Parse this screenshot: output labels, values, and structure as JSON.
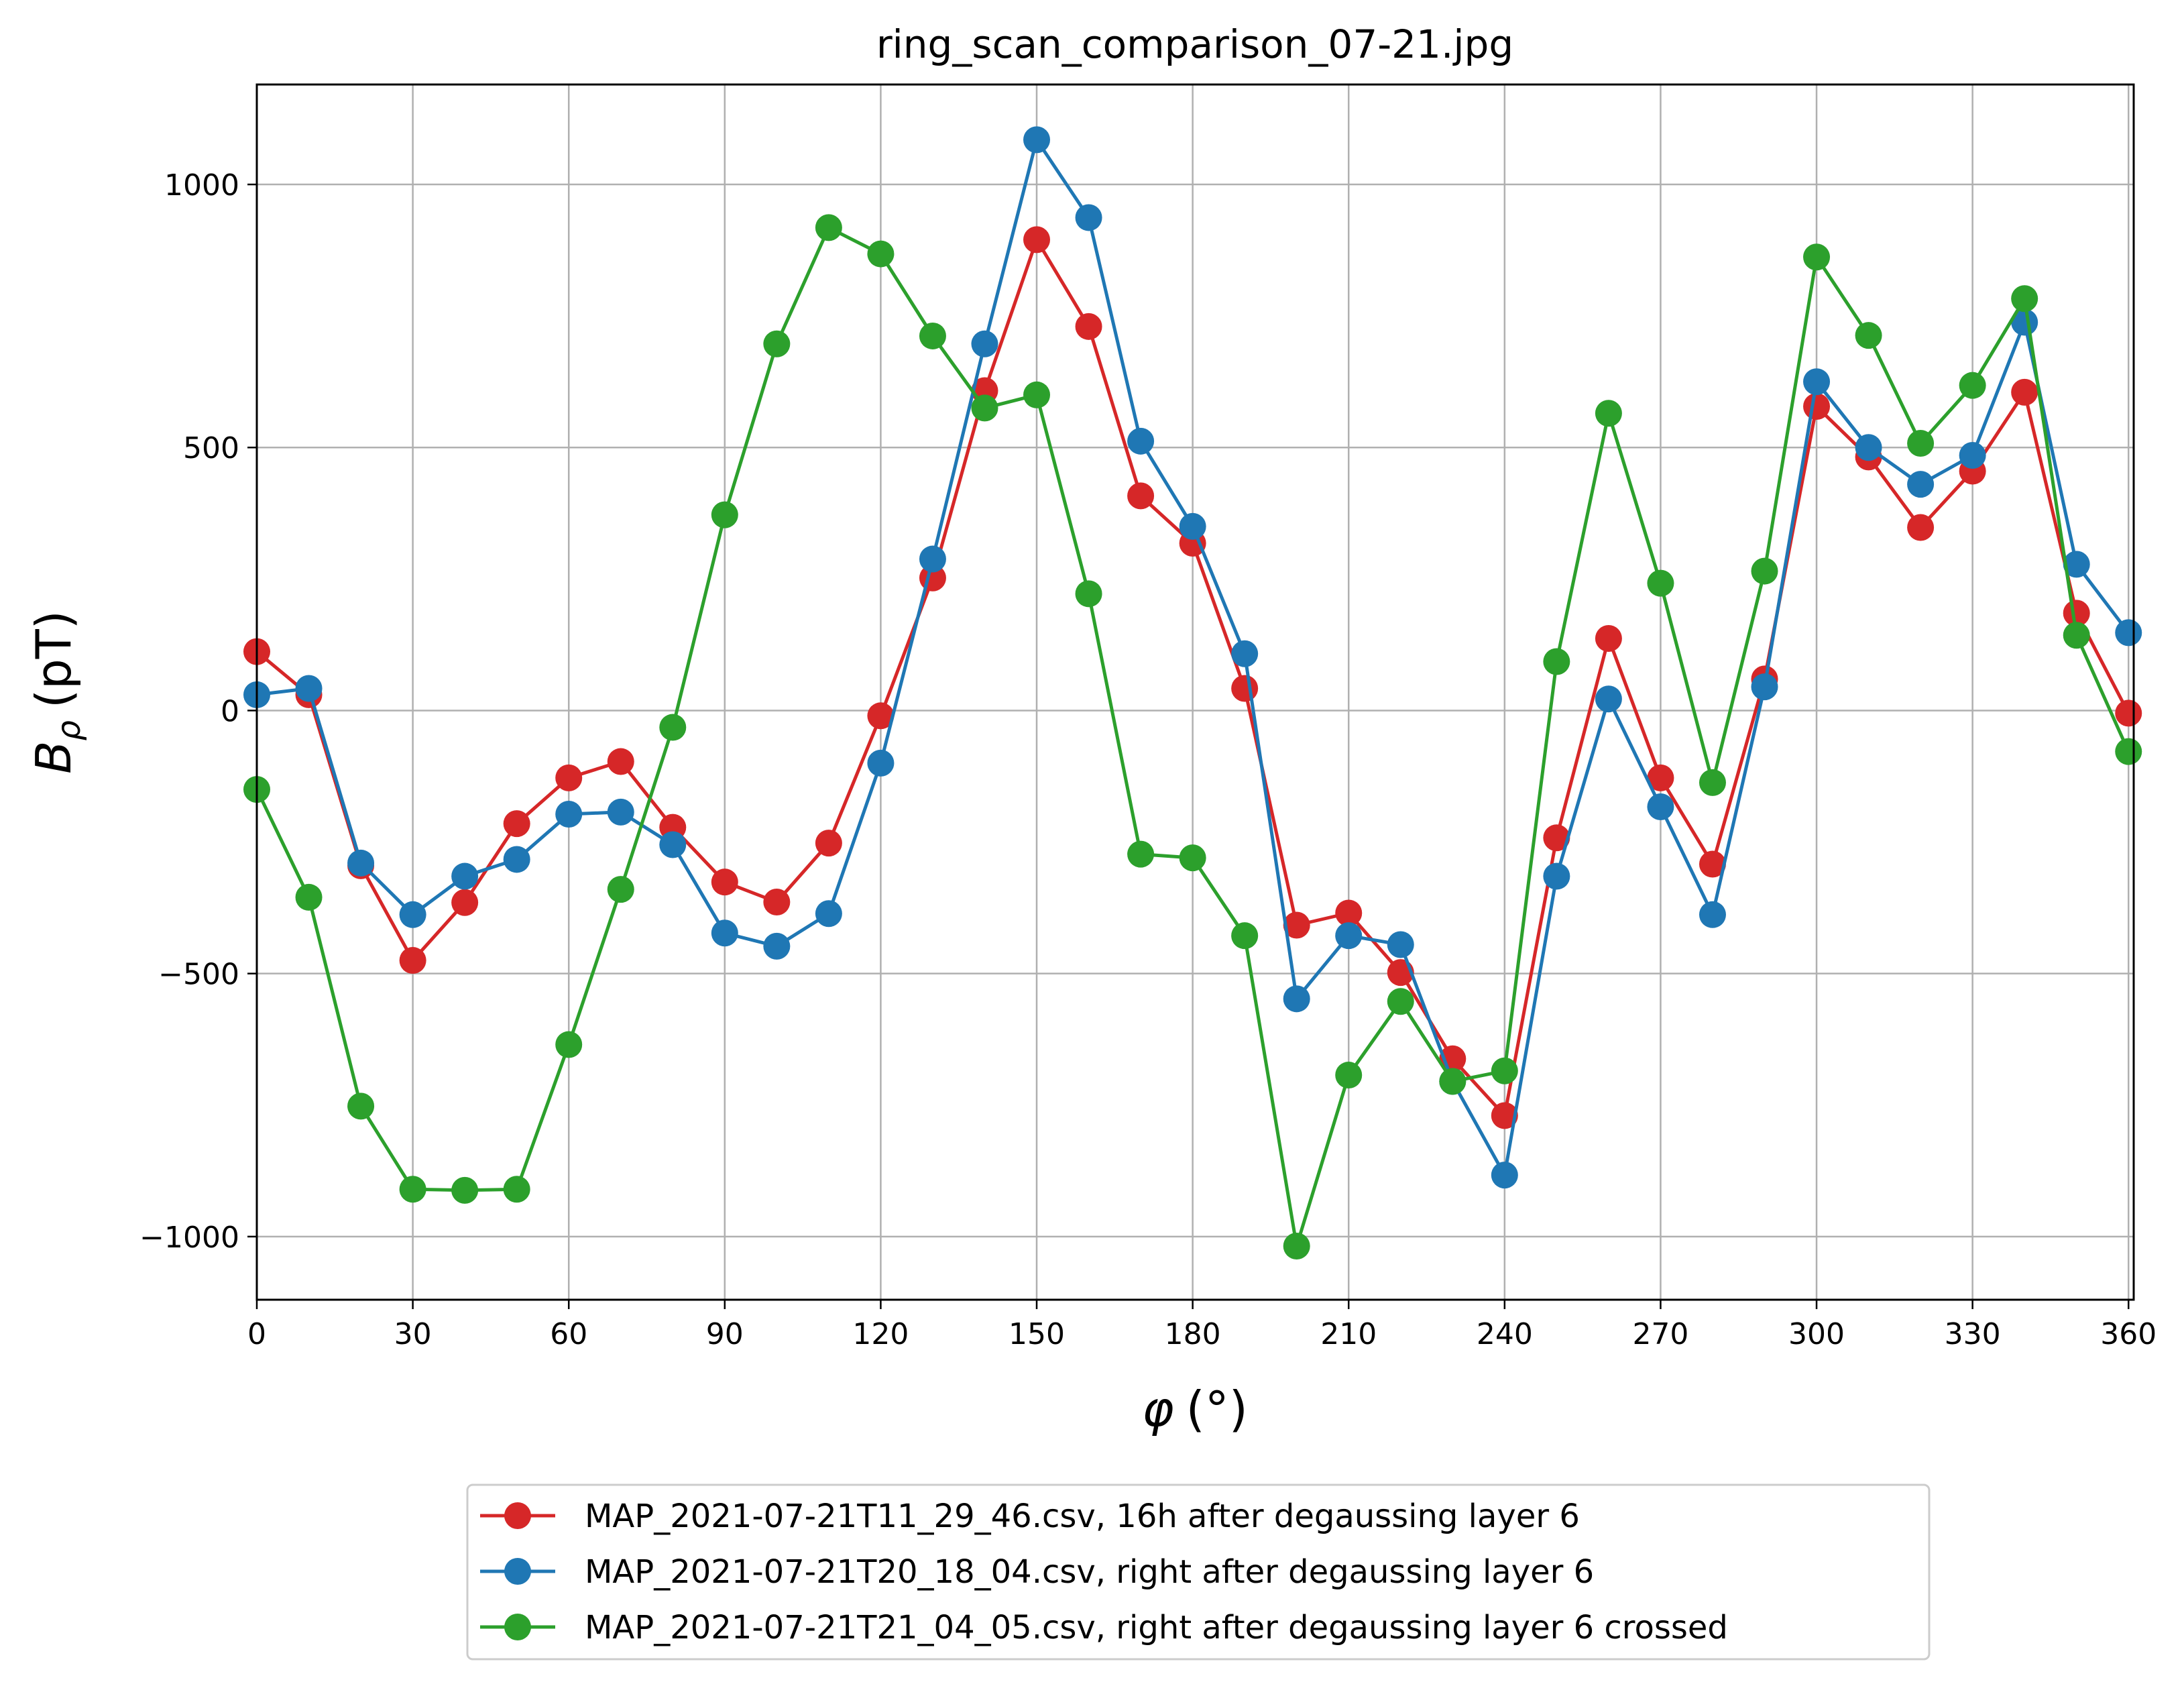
{
  "chart_data": {
    "type": "line",
    "title": "ring_scan_comparison_07-21.jpg",
    "xlabel_symbol": "φ",
    "xlabel_unit": "(°)",
    "ylabel_symbol": "B",
    "ylabel_subscript": "ρ",
    "ylabel_unit": "(pT)",
    "xlim": [
      0,
      361
    ],
    "ylim": [
      -1120,
      1190
    ],
    "xticks": [
      0,
      30,
      60,
      90,
      120,
      150,
      180,
      210,
      240,
      270,
      300,
      330,
      360
    ],
    "xtick_labels": [
      "0",
      "30",
      "60",
      "90",
      "120",
      "150",
      "180",
      "210",
      "240",
      "270",
      "300",
      "330",
      "360"
    ],
    "yticks": [
      -1000,
      -500,
      0,
      500,
      1000
    ],
    "ytick_labels": [
      "−1000",
      "−500",
      "0",
      "500",
      "1000"
    ],
    "grid": true,
    "legend_position": "below plot",
    "x": [
      0,
      10,
      20,
      30,
      40,
      50,
      60,
      70,
      80,
      90,
      100,
      110,
      120,
      130,
      140,
      150,
      160,
      170,
      180,
      190,
      200,
      210,
      220,
      230,
      240,
      250,
      260,
      270,
      280,
      290,
      300,
      310,
      320,
      330,
      340,
      350,
      360
    ],
    "series": [
      {
        "name": "MAP_2021-07-21T11_29_46.csv, 16h after degaussing layer 6",
        "color": "#d62728",
        "values": [
          112,
          30,
          -295,
          -475,
          -365,
          -215,
          -128,
          -97,
          -222,
          -326,
          -364,
          -252,
          -10,
          252,
          608,
          895,
          730,
          408,
          318,
          42,
          -408,
          -385,
          -498,
          -662,
          -770,
          -242,
          137,
          -128,
          -292,
          60,
          578,
          482,
          348,
          455,
          605,
          185,
          -5
        ]
      },
      {
        "name": "MAP_2021-07-21T20_18_04.csv, right after degaussing layer 6",
        "color": "#1f77b4",
        "values": [
          30,
          42,
          -290,
          -388,
          -315,
          -283,
          -197,
          -193,
          -255,
          -423,
          -448,
          -386,
          -100,
          288,
          697,
          1085,
          937,
          512,
          350,
          108,
          -548,
          -428,
          -445,
          -705,
          -883,
          -315,
          22,
          -183,
          -388,
          45,
          625,
          500,
          430,
          485,
          738,
          278,
          148
        ]
      },
      {
        "name": "MAP_2021-07-21T21_04_05.csv, right after degaussing layer 6 crossed",
        "color": "#2ca02c",
        "values": [
          -150,
          -355,
          -752,
          -910,
          -912,
          -910,
          -635,
          -340,
          -32,
          372,
          697,
          918,
          868,
          712,
          575,
          600,
          222,
          -273,
          -280,
          -428,
          -1018,
          -693,
          -553,
          -705,
          -685,
          93,
          565,
          242,
          -137,
          265,
          862,
          713,
          508,
          618,
          783,
          143,
          -78
        ]
      }
    ]
  }
}
